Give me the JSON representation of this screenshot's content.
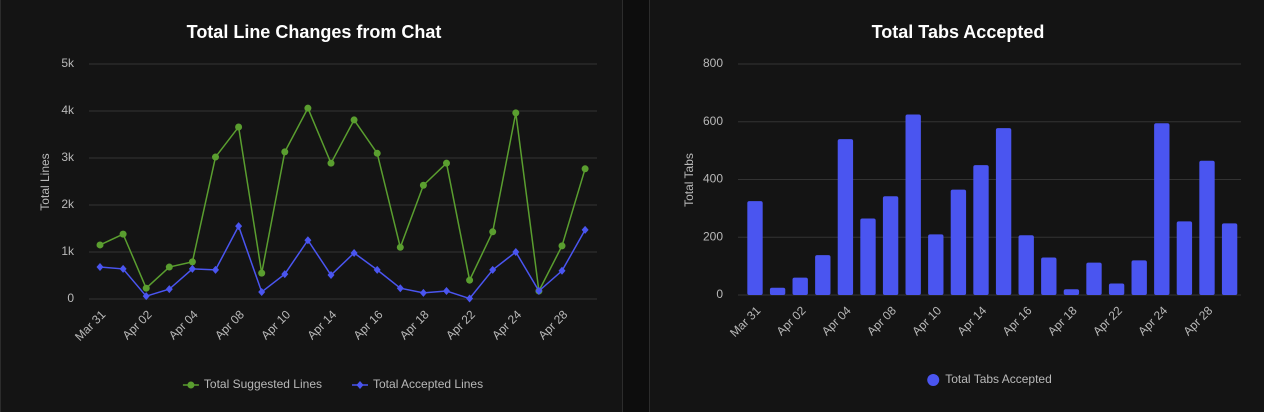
{
  "chart_data": [
    {
      "type": "line",
      "title": "Total Line Changes from Chat",
      "y_label": "Total Lines",
      "categories": [
        "Mar 31",
        null,
        "Apr 02",
        null,
        "Apr 04",
        null,
        "Apr 08",
        null,
        "Apr 10",
        null,
        "Apr 14",
        null,
        "Apr 16",
        null,
        "Apr 18",
        null,
        "Apr 22",
        null,
        "Apr 24",
        null,
        "Apr 28",
        null
      ],
      "series": [
        {
          "name": "Total Suggested Lines",
          "color": "#5a9e2f",
          "values": [
            1150,
            1380,
            230,
            680,
            790,
            3020,
            3660,
            550,
            3130,
            4060,
            2890,
            3810,
            3100,
            1100,
            2420,
            2890,
            400,
            1430,
            3960,
            170,
            1130,
            2770
          ]
        },
        {
          "name": "Total Accepted Lines",
          "color": "#4a55f0",
          "values": [
            680,
            640,
            60,
            210,
            640,
            620,
            1550,
            150,
            530,
            1250,
            510,
            980,
            620,
            230,
            130,
            170,
            10,
            620,
            1000,
            170,
            600,
            1470
          ]
        }
      ],
      "ylim": [
        0,
        5000
      ],
      "yticks": [
        0,
        {
          "value": 1000,
          "label": "1k"
        },
        {
          "value": 2000,
          "label": "2k"
        },
        {
          "value": 3000,
          "label": "3k"
        },
        {
          "value": 4000,
          "label": "4k"
        },
        {
          "value": 5000,
          "label": "5k"
        }
      ],
      "grid": true,
      "legend": "bottom"
    },
    {
      "type": "bar",
      "title": "Total Tabs Accepted",
      "y_label": "Total Tabs",
      "categories": [
        "Mar 31",
        null,
        "Apr 02",
        null,
        "Apr 04",
        null,
        "Apr 08",
        null,
        "Apr 10",
        null,
        "Apr 14",
        null,
        "Apr 16",
        null,
        "Apr 18",
        null,
        "Apr 22",
        null,
        "Apr 24",
        null,
        "Apr 28",
        null
      ],
      "series": [
        {
          "name": "Total Tabs Accepted",
          "color": "#4a55f0",
          "values": [
            325,
            25,
            60,
            138,
            540,
            265,
            342,
            625,
            210,
            365,
            450,
            578,
            207,
            130,
            20,
            112,
            40,
            120,
            595,
            255,
            465,
            248
          ]
        }
      ],
      "ylim": [
        0,
        800
      ],
      "yticks": [
        0,
        200,
        400,
        600,
        800
      ],
      "grid": true,
      "legend": "bottom"
    }
  ]
}
